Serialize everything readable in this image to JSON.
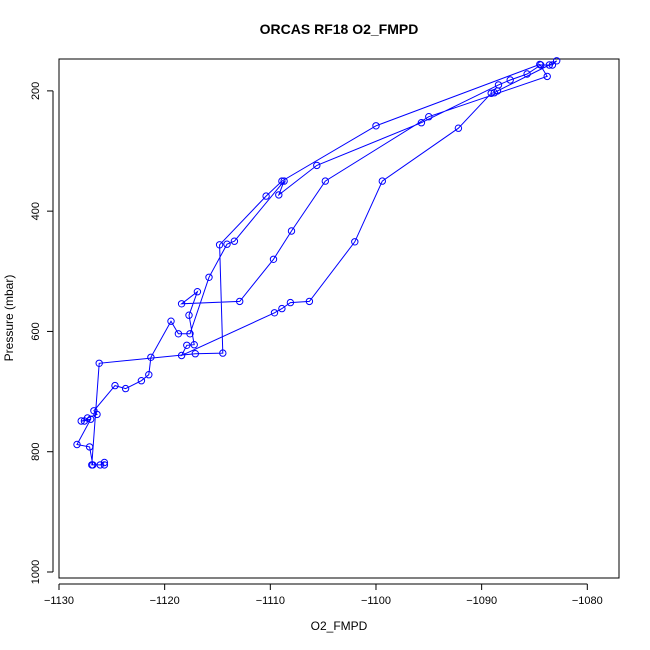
{
  "chart_data": {
    "type": "line",
    "title": "ORCAS RF18 O2_FMPD",
    "xlabel": "O2_FMPD",
    "ylabel": "Pressure (mbar)",
    "xlim": [
      -1130,
      -1077
    ],
    "ylim": [
      1010,
      147
    ],
    "y_inverted": true,
    "x_ticks": [
      -1130,
      -1120,
      -1110,
      -1100,
      -1090,
      -1080
    ],
    "y_ticks": [
      200,
      400,
      600,
      800,
      1000
    ],
    "grid": false,
    "series": [
      {
        "color": "#0000ff",
        "marker": "open-circle",
        "x": [
          -1125.7,
          -1126.1,
          -1126.8,
          -1127.1,
          -1128.3,
          -1127.0,
          -1127.9,
          -1127.6,
          -1127.3,
          -1126.4,
          -1126.7,
          -1124.7,
          -1123.7,
          -1122.2,
          -1121.5,
          -1121.3,
          -1119.4,
          -1118.7,
          -1117.6,
          -1115.8,
          -1114.1,
          -1113.4,
          -1108.7,
          -1109.2,
          -1105.6,
          -1095.7,
          -1088.4,
          -1087.3,
          -1085.7,
          -1084.4,
          -1083.3,
          -1082.9,
          -1083.6,
          -1088.5,
          -1088.8,
          -1089.1,
          -1092.2,
          -1099.4,
          -1102.0,
          -1106.3,
          -1108.1,
          -1108.9,
          -1109.6,
          -1118.4,
          -1117.9,
          -1117.2,
          -1117.7,
          -1116.9,
          -1118.4,
          -1112.9,
          -1109.7,
          -1108.0,
          -1104.8,
          -1095.0,
          -1083.8,
          -1084.5,
          -1100.0,
          -1108.9,
          -1110.4,
          -1114.8,
          -1114.5,
          -1117.1,
          -1126.2,
          -1126.9,
          -1125.7
        ],
        "y": [
          818,
          822,
          822,
          792,
          788,
          746,
          749,
          749,
          744,
          738,
          732,
          690,
          695,
          682,
          672,
          643,
          583,
          604,
          604,
          510,
          455,
          450,
          350,
          373,
          324,
          253,
          190,
          182,
          172,
          157,
          157,
          150,
          157,
          200,
          203,
          204,
          262,
          350,
          451,
          550,
          552,
          562,
          569,
          640,
          623,
          622,
          573,
          534,
          554,
          550,
          480,
          433,
          350,
          243,
          176,
          156,
          258,
          350,
          375,
          456,
          636,
          637,
          653,
          822,
          822
        ]
      }
    ]
  }
}
